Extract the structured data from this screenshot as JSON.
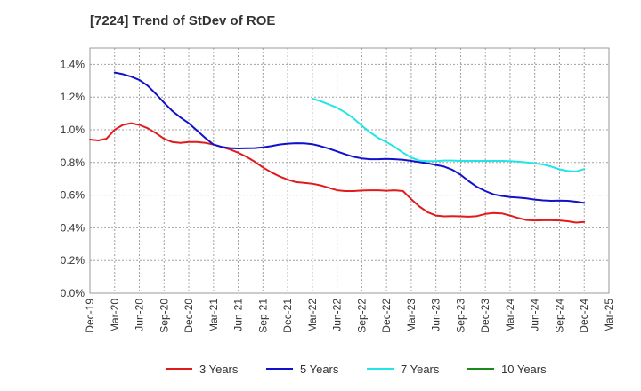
{
  "chart_data": {
    "type": "line",
    "title": "[7224]  Trend of StDev of ROE",
    "xlabel": "",
    "ylabel": "",
    "x_ticks": [
      "Dec-19",
      "Mar-20",
      "Jun-20",
      "Sep-20",
      "Dec-20",
      "Mar-21",
      "Jun-21",
      "Sep-21",
      "Dec-21",
      "Mar-22",
      "Jun-22",
      "Sep-22",
      "Dec-22",
      "Mar-23",
      "Jun-23",
      "Sep-23",
      "Dec-23",
      "Mar-24",
      "Jun-24",
      "Sep-24",
      "Dec-24",
      "Mar-25"
    ],
    "y_ticks": [
      "0.0%",
      "0.2%",
      "0.4%",
      "0.6%",
      "0.8%",
      "1.0%",
      "1.2%",
      "1.4%"
    ],
    "ylim": [
      0,
      1.5
    ],
    "grid": true,
    "legend_position": "bottom",
    "series": [
      {
        "name": "3 Years",
        "color": "#e31a1c",
        "values": [
          [
            "Dec-19",
            0.94
          ],
          [
            "Jan-20",
            0.935
          ],
          [
            "Feb-20",
            0.945
          ],
          [
            "Mar-20",
            1.0
          ],
          [
            "Apr-20",
            1.03
          ],
          [
            "May-20",
            1.04
          ],
          [
            "Jun-20",
            1.03
          ],
          [
            "Jul-20",
            1.01
          ],
          [
            "Aug-20",
            0.98
          ],
          [
            "Sep-20",
            0.945
          ],
          [
            "Oct-20",
            0.925
          ],
          [
            "Nov-20",
            0.92
          ],
          [
            "Dec-20",
            0.925
          ],
          [
            "Jan-21",
            0.925
          ],
          [
            "Feb-21",
            0.92
          ],
          [
            "Mar-21",
            0.91
          ],
          [
            "Apr-21",
            0.895
          ],
          [
            "May-21",
            0.88
          ],
          [
            "Jun-21",
            0.86
          ],
          [
            "Jul-21",
            0.835
          ],
          [
            "Aug-21",
            0.805
          ],
          [
            "Sep-21",
            0.77
          ],
          [
            "Oct-21",
            0.74
          ],
          [
            "Nov-21",
            0.715
          ],
          [
            "Dec-21",
            0.695
          ],
          [
            "Jan-22",
            0.68
          ],
          [
            "Feb-22",
            0.675
          ],
          [
            "Mar-22",
            0.67
          ],
          [
            "Apr-22",
            0.66
          ],
          [
            "May-22",
            0.645
          ],
          [
            "Jun-22",
            0.63
          ],
          [
            "Jul-22",
            0.625
          ],
          [
            "Aug-22",
            0.625
          ],
          [
            "Sep-22",
            0.628
          ],
          [
            "Oct-22",
            0.63
          ],
          [
            "Nov-22",
            0.63
          ],
          [
            "Dec-22",
            0.627
          ],
          [
            "Jan-23",
            0.63
          ],
          [
            "Feb-23",
            0.625
          ],
          [
            "Mar-23",
            0.575
          ],
          [
            "Apr-23",
            0.53
          ],
          [
            "May-23",
            0.495
          ],
          [
            "Jun-23",
            0.475
          ],
          [
            "Jul-23",
            0.47
          ],
          [
            "Aug-23",
            0.472
          ],
          [
            "Sep-23",
            0.47
          ],
          [
            "Oct-23",
            0.468
          ],
          [
            "Nov-23",
            0.472
          ],
          [
            "Dec-23",
            0.485
          ],
          [
            "Jan-24",
            0.49
          ],
          [
            "Feb-24",
            0.488
          ],
          [
            "Mar-24",
            0.475
          ],
          [
            "Apr-24",
            0.46
          ],
          [
            "May-24",
            0.448
          ],
          [
            "Jun-24",
            0.445
          ],
          [
            "Jul-24",
            0.446
          ],
          [
            "Aug-24",
            0.446
          ],
          [
            "Sep-24",
            0.445
          ],
          [
            "Oct-24",
            0.44
          ],
          [
            "Nov-24",
            0.432
          ],
          [
            "Dec-24",
            0.436
          ]
        ]
      },
      {
        "name": "5 Years",
        "color": "#1111cc",
        "values": [
          [
            "Mar-20",
            1.35
          ],
          [
            "Apr-20",
            1.34
          ],
          [
            "May-20",
            1.325
          ],
          [
            "Jun-20",
            1.305
          ],
          [
            "Jul-20",
            1.27
          ],
          [
            "Aug-20",
            1.22
          ],
          [
            "Sep-20",
            1.165
          ],
          [
            "Oct-20",
            1.115
          ],
          [
            "Nov-20",
            1.075
          ],
          [
            "Dec-20",
            1.04
          ],
          [
            "Jan-21",
            0.995
          ],
          [
            "Feb-21",
            0.95
          ],
          [
            "Mar-21",
            0.91
          ],
          [
            "Apr-21",
            0.895
          ],
          [
            "May-21",
            0.888
          ],
          [
            "Jun-21",
            0.886
          ],
          [
            "Jul-21",
            0.887
          ],
          [
            "Aug-21",
            0.888
          ],
          [
            "Sep-21",
            0.893
          ],
          [
            "Oct-21",
            0.9
          ],
          [
            "Nov-21",
            0.91
          ],
          [
            "Dec-21",
            0.915
          ],
          [
            "Jan-22",
            0.918
          ],
          [
            "Feb-22",
            0.917
          ],
          [
            "Mar-22",
            0.912
          ],
          [
            "Apr-22",
            0.9
          ],
          [
            "May-22",
            0.885
          ],
          [
            "Jun-22",
            0.868
          ],
          [
            "Jul-22",
            0.85
          ],
          [
            "Aug-22",
            0.835
          ],
          [
            "Sep-22",
            0.825
          ],
          [
            "Oct-22",
            0.82
          ],
          [
            "Nov-22",
            0.82
          ],
          [
            "Dec-22",
            0.822
          ],
          [
            "Jan-23",
            0.82
          ],
          [
            "Feb-23",
            0.817
          ],
          [
            "Mar-23",
            0.81
          ],
          [
            "Apr-23",
            0.802
          ],
          [
            "May-23",
            0.795
          ],
          [
            "Jun-23",
            0.785
          ],
          [
            "Jul-23",
            0.775
          ],
          [
            "Aug-23",
            0.755
          ],
          [
            "Sep-23",
            0.725
          ],
          [
            "Oct-23",
            0.685
          ],
          [
            "Nov-23",
            0.65
          ],
          [
            "Dec-23",
            0.625
          ],
          [
            "Jan-24",
            0.605
          ],
          [
            "Feb-24",
            0.595
          ],
          [
            "Mar-24",
            0.588
          ],
          [
            "Apr-24",
            0.585
          ],
          [
            "May-24",
            0.58
          ],
          [
            "Jun-24",
            0.573
          ],
          [
            "Jul-24",
            0.568
          ],
          [
            "Aug-24",
            0.565
          ],
          [
            "Sep-24",
            0.567
          ],
          [
            "Oct-24",
            0.565
          ],
          [
            "Nov-24",
            0.56
          ],
          [
            "Dec-24",
            0.552
          ]
        ]
      },
      {
        "name": "7 Years",
        "color": "#22e5e5",
        "values": [
          [
            "Mar-22",
            1.19
          ],
          [
            "Apr-22",
            1.175
          ],
          [
            "May-22",
            1.155
          ],
          [
            "Jun-22",
            1.135
          ],
          [
            "Jul-22",
            1.105
          ],
          [
            "Aug-22",
            1.07
          ],
          [
            "Sep-22",
            1.025
          ],
          [
            "Oct-22",
            0.985
          ],
          [
            "Nov-22",
            0.95
          ],
          [
            "Dec-22",
            0.925
          ],
          [
            "Jan-23",
            0.895
          ],
          [
            "Feb-23",
            0.86
          ],
          [
            "Mar-23",
            0.83
          ],
          [
            "Apr-23",
            0.812
          ],
          [
            "May-23",
            0.808
          ],
          [
            "Jun-23",
            0.808
          ],
          [
            "Jul-23",
            0.812
          ],
          [
            "Aug-23",
            0.812
          ],
          [
            "Sep-23",
            0.81
          ],
          [
            "Oct-23",
            0.81
          ],
          [
            "Nov-23",
            0.81
          ],
          [
            "Dec-23",
            0.81
          ],
          [
            "Jan-24",
            0.81
          ],
          [
            "Feb-24",
            0.81
          ],
          [
            "Mar-24",
            0.808
          ],
          [
            "Apr-24",
            0.805
          ],
          [
            "May-24",
            0.8
          ],
          [
            "Jun-24",
            0.795
          ],
          [
            "Jul-24",
            0.788
          ],
          [
            "Aug-24",
            0.775
          ],
          [
            "Sep-24",
            0.758
          ],
          [
            "Oct-24",
            0.748
          ],
          [
            "Nov-24",
            0.745
          ],
          [
            "Dec-24",
            0.76
          ]
        ]
      },
      {
        "name": "10 Years",
        "color": "#1a8a1a",
        "values": []
      }
    ]
  }
}
